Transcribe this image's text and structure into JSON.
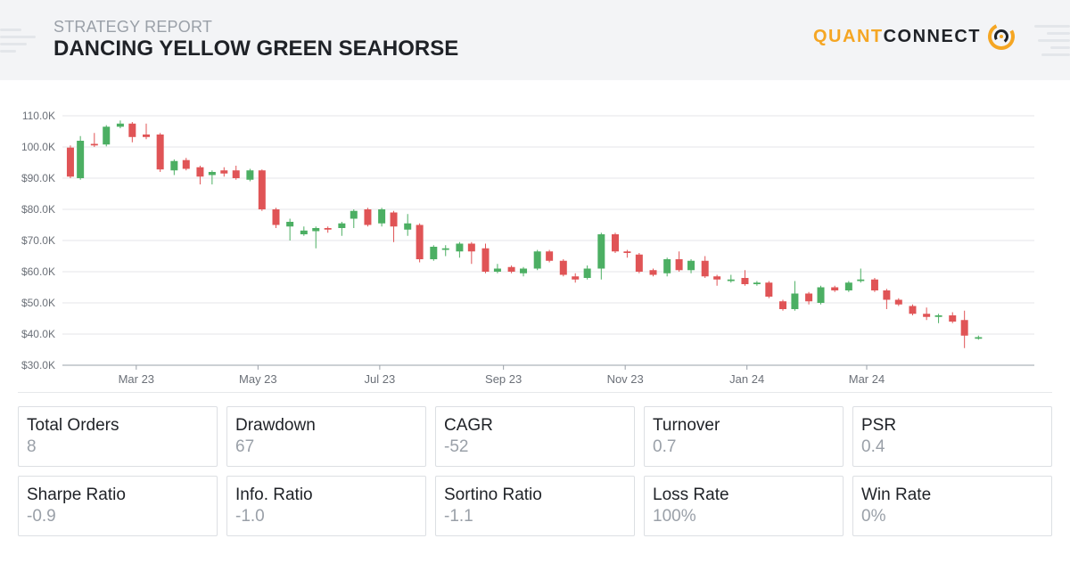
{
  "header": {
    "subtitle": "STRATEGY REPORT",
    "title": "DANCING YELLOW GREEN SEAHORSE",
    "logo_part1": "QUANT",
    "logo_part2": "CONNECT"
  },
  "colors": {
    "up": "#4caf63",
    "down": "#e05456",
    "brand": "#f5a623",
    "grid": "#e4e6ea",
    "axis_text": "#6b7078"
  },
  "chart_data": {
    "type": "candlestick",
    "title": "",
    "ylabel": "",
    "xlabel": "",
    "ylim": [
      30,
      110
    ],
    "y_ticks": [
      "$30.0K",
      "$40.0K",
      "$50.0K",
      "$60.0K",
      "$70.0K",
      "$80.0K",
      "$90.0K",
      "100.0K",
      "110.0K"
    ],
    "x_ticks": [
      "Mar 23",
      "May 23",
      "Jul 23",
      "Sep 23",
      "Nov 23",
      "Jan 24",
      "Mar 24"
    ],
    "x_range": [
      "2023-01-23",
      "2024-05-24"
    ],
    "x_tick_dates": [
      "2023-03-01",
      "2023-05-01",
      "2023-07-01",
      "2023-09-01",
      "2023-11-01",
      "2024-01-01",
      "2024-03-01"
    ],
    "grid": true,
    "candles": [
      {
        "date": "2023-01-27",
        "open": 99.8,
        "high": 100.5,
        "low": 90,
        "close": 90.5
      },
      {
        "date": "2023-02-01",
        "open": 90,
        "high": 103.5,
        "low": 89.5,
        "close": 102
      },
      {
        "date": "2023-02-08",
        "open": 101,
        "high": 104.5,
        "low": 100,
        "close": 100.5
      },
      {
        "date": "2023-02-14",
        "open": 100.8,
        "high": 107,
        "low": 100.2,
        "close": 106.5
      },
      {
        "date": "2023-02-21",
        "open": 106.5,
        "high": 108.5,
        "low": 106,
        "close": 107.5
      },
      {
        "date": "2023-02-27",
        "open": 107.5,
        "high": 108,
        "low": 101.5,
        "close": 103.2
      },
      {
        "date": "2023-03-06",
        "open": 104,
        "high": 107.5,
        "low": 102.5,
        "close": 103.2
      },
      {
        "date": "2023-03-13",
        "open": 104,
        "high": 104.5,
        "low": 92,
        "close": 92.8
      },
      {
        "date": "2023-03-20",
        "open": 92.5,
        "high": 96,
        "low": 91,
        "close": 95.5
      },
      {
        "date": "2023-03-26",
        "open": 95.8,
        "high": 96.5,
        "low": 92.5,
        "close": 93
      },
      {
        "date": "2023-04-02",
        "open": 93.5,
        "high": 94,
        "low": 88,
        "close": 90.5
      },
      {
        "date": "2023-04-08",
        "open": 91,
        "high": 92.5,
        "low": 88,
        "close": 92
      },
      {
        "date": "2023-04-14",
        "open": 92.5,
        "high": 93.5,
        "low": 90.5,
        "close": 91.5
      },
      {
        "date": "2023-04-20",
        "open": 92.5,
        "high": 94,
        "low": 89.5,
        "close": 90
      },
      {
        "date": "2023-04-27",
        "open": 89.5,
        "high": 93,
        "low": 89,
        "close": 92.5
      },
      {
        "date": "2023-05-03",
        "open": 92.5,
        "high": 92.8,
        "low": 79.5,
        "close": 80
      },
      {
        "date": "2023-05-10",
        "open": 80,
        "high": 80.5,
        "low": 74,
        "close": 75
      },
      {
        "date": "2023-05-17",
        "open": 74.5,
        "high": 77,
        "low": 70,
        "close": 76
      },
      {
        "date": "2023-05-24",
        "open": 72,
        "high": 74.5,
        "low": 71.5,
        "close": 73.2
      },
      {
        "date": "2023-05-30",
        "open": 73,
        "high": 74.5,
        "low": 67.5,
        "close": 74
      },
      {
        "date": "2023-06-05",
        "open": 74,
        "high": 74.5,
        "low": 72.5,
        "close": 73.5
      },
      {
        "date": "2023-06-12",
        "open": 74,
        "high": 76,
        "low": 71.5,
        "close": 75.5
      },
      {
        "date": "2023-06-18",
        "open": 77,
        "high": 80,
        "low": 74,
        "close": 79.5
      },
      {
        "date": "2023-06-25",
        "open": 80,
        "high": 80.5,
        "low": 74.5,
        "close": 75
      },
      {
        "date": "2023-07-02",
        "open": 75.5,
        "high": 80.5,
        "low": 74.5,
        "close": 80
      },
      {
        "date": "2023-07-08",
        "open": 79,
        "high": 79.5,
        "low": 69.5,
        "close": 74.5
      },
      {
        "date": "2023-07-15",
        "open": 73.5,
        "high": 78.5,
        "low": 71.5,
        "close": 75.5
      },
      {
        "date": "2023-07-21",
        "open": 75,
        "high": 75.5,
        "low": 63,
        "close": 64
      },
      {
        "date": "2023-07-28",
        "open": 64,
        "high": 68.5,
        "low": 63.5,
        "close": 68
      },
      {
        "date": "2023-08-03",
        "open": 67,
        "high": 68.5,
        "low": 65,
        "close": 67.5
      },
      {
        "date": "2023-08-10",
        "open": 66.5,
        "high": 69.5,
        "low": 64.5,
        "close": 69
      },
      {
        "date": "2023-08-16",
        "open": 69,
        "high": 69.5,
        "low": 62.5,
        "close": 66.5
      },
      {
        "date": "2023-08-23",
        "open": 67.5,
        "high": 69,
        "low": 59.5,
        "close": 60
      },
      {
        "date": "2023-08-29",
        "open": 60,
        "high": 62.5,
        "low": 59.5,
        "close": 61
      },
      {
        "date": "2023-09-05",
        "open": 61.5,
        "high": 62,
        "low": 59.5,
        "close": 60
      },
      {
        "date": "2023-09-11",
        "open": 59.5,
        "high": 61.5,
        "low": 58.5,
        "close": 61
      },
      {
        "date": "2023-09-18",
        "open": 61,
        "high": 67,
        "low": 60.5,
        "close": 66.5
      },
      {
        "date": "2023-09-24",
        "open": 66.5,
        "high": 67,
        "low": 63,
        "close": 63.5
      },
      {
        "date": "2023-10-01",
        "open": 63.5,
        "high": 64,
        "low": 58.5,
        "close": 59
      },
      {
        "date": "2023-10-07",
        "open": 58.5,
        "high": 59.5,
        "low": 56.5,
        "close": 57.5
      },
      {
        "date": "2023-10-13",
        "open": 58,
        "high": 62,
        "low": 57.5,
        "close": 61
      },
      {
        "date": "2023-10-20",
        "open": 61,
        "high": 72.5,
        "low": 57.5,
        "close": 72
      },
      {
        "date": "2023-10-27",
        "open": 72,
        "high": 72.5,
        "low": 66,
        "close": 66.5
      },
      {
        "date": "2023-11-02",
        "open": 66.5,
        "high": 67,
        "low": 64.5,
        "close": 66
      },
      {
        "date": "2023-11-08",
        "open": 65.5,
        "high": 66,
        "low": 59.5,
        "close": 60
      },
      {
        "date": "2023-11-15",
        "open": 60.5,
        "high": 61,
        "low": 58.5,
        "close": 59
      },
      {
        "date": "2023-11-22",
        "open": 59.5,
        "high": 64.5,
        "low": 58.5,
        "close": 64
      },
      {
        "date": "2023-11-28",
        "open": 64,
        "high": 66.5,
        "low": 60,
        "close": 60.5
      },
      {
        "date": "2023-12-04",
        "open": 60.5,
        "high": 64,
        "low": 59.5,
        "close": 63.5
      },
      {
        "date": "2023-12-11",
        "open": 63.5,
        "high": 65,
        "low": 58,
        "close": 58.5
      },
      {
        "date": "2023-12-17",
        "open": 58.5,
        "high": 59,
        "low": 55.5,
        "close": 57.5
      },
      {
        "date": "2023-12-24",
        "open": 57,
        "high": 59,
        "low": 56.5,
        "close": 57.5
      },
      {
        "date": "2023-12-31",
        "open": 58,
        "high": 60.5,
        "low": 55.5,
        "close": 56
      },
      {
        "date": "2024-01-06",
        "open": 56,
        "high": 57,
        "low": 55.5,
        "close": 56.5
      },
      {
        "date": "2024-01-12",
        "open": 56.5,
        "high": 57,
        "low": 51.5,
        "close": 52
      },
      {
        "date": "2024-01-19",
        "open": 50.5,
        "high": 51,
        "low": 47.5,
        "close": 48
      },
      {
        "date": "2024-01-25",
        "open": 48,
        "high": 57,
        "low": 47.5,
        "close": 53
      },
      {
        "date": "2024-02-01",
        "open": 53,
        "high": 53.5,
        "low": 49.5,
        "close": 50.5
      },
      {
        "date": "2024-02-07",
        "open": 50,
        "high": 55.5,
        "low": 49.5,
        "close": 55
      },
      {
        "date": "2024-02-14",
        "open": 55,
        "high": 55.5,
        "low": 53.5,
        "close": 54
      },
      {
        "date": "2024-02-21",
        "open": 54,
        "high": 57,
        "low": 53.5,
        "close": 56.5
      },
      {
        "date": "2024-02-27",
        "open": 57,
        "high": 61,
        "low": 56.5,
        "close": 57.5
      },
      {
        "date": "2024-03-05",
        "open": 57.5,
        "high": 58,
        "low": 53.5,
        "close": 54
      },
      {
        "date": "2024-03-11",
        "open": 54,
        "high": 54.5,
        "low": 48,
        "close": 51
      },
      {
        "date": "2024-03-17",
        "open": 51,
        "high": 51.5,
        "low": 49,
        "close": 49.5
      },
      {
        "date": "2024-03-24",
        "open": 49,
        "high": 49.5,
        "low": 46,
        "close": 46.5
      },
      {
        "date": "2024-03-31",
        "open": 46.5,
        "high": 48.5,
        "low": 44.5,
        "close": 45.5
      },
      {
        "date": "2024-04-06",
        "open": 45.5,
        "high": 46.5,
        "low": 43.5,
        "close": 46
      },
      {
        "date": "2024-04-13",
        "open": 46,
        "high": 47,
        "low": 43.5,
        "close": 44
      },
      {
        "date": "2024-04-19",
        "open": 44.5,
        "high": 47.5,
        "low": 35.5,
        "close": 39.5
      },
      {
        "date": "2024-04-26",
        "open": 38.5,
        "high": 39.5,
        "low": 38.2,
        "close": 39
      }
    ]
  },
  "stats": [
    {
      "label": "Total Orders",
      "value": "8"
    },
    {
      "label": "Drawdown",
      "value": "67"
    },
    {
      "label": "CAGR",
      "value": "-52"
    },
    {
      "label": "Turnover",
      "value": "0.7"
    },
    {
      "label": "PSR",
      "value": "0.4"
    },
    {
      "label": "Sharpe Ratio",
      "value": "-0.9"
    },
    {
      "label": "Info. Ratio",
      "value": "-1.0"
    },
    {
      "label": "Sortino Ratio",
      "value": "-1.1"
    },
    {
      "label": "Loss Rate",
      "value": "100%"
    },
    {
      "label": "Win Rate",
      "value": "0%"
    }
  ]
}
